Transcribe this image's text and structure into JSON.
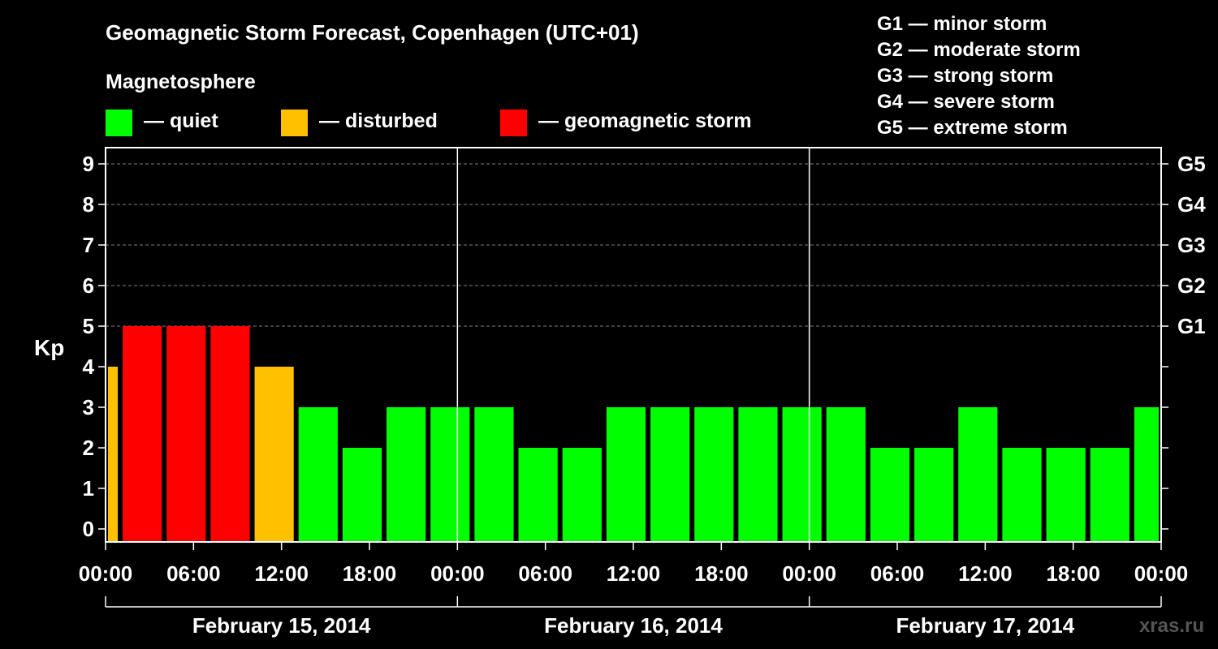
{
  "chart_data": {
    "type": "bar",
    "title": "Geomagnetic Storm Forecast, Copenhagen (UTC+01)",
    "legend_heading": "Magnetosphere",
    "legend": [
      {
        "label": "— quiet",
        "color": "#00ff00"
      },
      {
        "label": "— disturbed",
        "color": "#ffc000"
      },
      {
        "label": "— geomagnetic storm",
        "color": "#ff0000"
      }
    ],
    "storm_scale": [
      "G1 — minor storm",
      "G2 — moderate storm",
      "G3 — strong storm",
      "G4 — severe storm",
      "G5 — extreme storm"
    ],
    "ylabel": "Kp",
    "ylim": [
      0,
      9
    ],
    "yticks": [
      "0",
      "1",
      "2",
      "3",
      "4",
      "5",
      "6",
      "7",
      "8",
      "9"
    ],
    "gridlines": [
      5,
      6,
      7,
      8,
      9
    ],
    "right_axis_labels": [
      {
        "kp": 5,
        "label": "G1"
      },
      {
        "kp": 6,
        "label": "G2"
      },
      {
        "kp": 7,
        "label": "G3"
      },
      {
        "kp": 8,
        "label": "G4"
      },
      {
        "kp": 9,
        "label": "G5"
      }
    ],
    "x_hours_range": [
      0,
      72
    ],
    "xticks": [
      {
        "hour": 0,
        "label": "00:00"
      },
      {
        "hour": 6,
        "label": "06:00"
      },
      {
        "hour": 12,
        "label": "12:00"
      },
      {
        "hour": 18,
        "label": "18:00"
      },
      {
        "hour": 24,
        "label": "00:00"
      },
      {
        "hour": 30,
        "label": "06:00"
      },
      {
        "hour": 36,
        "label": "12:00"
      },
      {
        "hour": 42,
        "label": "18:00"
      },
      {
        "hour": 48,
        "label": "00:00"
      },
      {
        "hour": 54,
        "label": "06:00"
      },
      {
        "hour": 60,
        "label": "12:00"
      },
      {
        "hour": 66,
        "label": "18:00"
      },
      {
        "hour": 72,
        "label": "00:00"
      }
    ],
    "day_separators": [
      24,
      48
    ],
    "dates": [
      {
        "label": "February 15, 2014",
        "start": 0,
        "end": 24
      },
      {
        "label": "February 16, 2014",
        "start": 24,
        "end": 48
      },
      {
        "label": "February 17, 2014",
        "start": 48,
        "end": 72
      }
    ],
    "bars": [
      {
        "start": 0,
        "end": 1,
        "kp": 4,
        "level": "disturbed"
      },
      {
        "start": 1,
        "end": 4,
        "kp": 5,
        "level": "storm"
      },
      {
        "start": 4,
        "end": 7,
        "kp": 5,
        "level": "storm"
      },
      {
        "start": 7,
        "end": 10,
        "kp": 5,
        "level": "storm"
      },
      {
        "start": 10,
        "end": 13,
        "kp": 4,
        "level": "disturbed"
      },
      {
        "start": 13,
        "end": 16,
        "kp": 3,
        "level": "quiet"
      },
      {
        "start": 16,
        "end": 19,
        "kp": 2,
        "level": "quiet"
      },
      {
        "start": 19,
        "end": 22,
        "kp": 3,
        "level": "quiet"
      },
      {
        "start": 22,
        "end": 25,
        "kp": 3,
        "level": "quiet"
      },
      {
        "start": 25,
        "end": 28,
        "kp": 3,
        "level": "quiet"
      },
      {
        "start": 28,
        "end": 31,
        "kp": 2,
        "level": "quiet"
      },
      {
        "start": 31,
        "end": 34,
        "kp": 2,
        "level": "quiet"
      },
      {
        "start": 34,
        "end": 37,
        "kp": 3,
        "level": "quiet"
      },
      {
        "start": 37,
        "end": 40,
        "kp": 3,
        "level": "quiet"
      },
      {
        "start": 40,
        "end": 43,
        "kp": 3,
        "level": "quiet"
      },
      {
        "start": 43,
        "end": 46,
        "kp": 3,
        "level": "quiet"
      },
      {
        "start": 46,
        "end": 49,
        "kp": 3,
        "level": "quiet"
      },
      {
        "start": 49,
        "end": 52,
        "kp": 3,
        "level": "quiet"
      },
      {
        "start": 52,
        "end": 55,
        "kp": 2,
        "level": "quiet"
      },
      {
        "start": 55,
        "end": 58,
        "kp": 2,
        "level": "quiet"
      },
      {
        "start": 58,
        "end": 61,
        "kp": 3,
        "level": "quiet"
      },
      {
        "start": 61,
        "end": 64,
        "kp": 2,
        "level": "quiet"
      },
      {
        "start": 64,
        "end": 67,
        "kp": 2,
        "level": "quiet"
      },
      {
        "start": 67,
        "end": 70,
        "kp": 2,
        "level": "quiet"
      },
      {
        "start": 70,
        "end": 72,
        "kp": 3,
        "level": "quiet"
      }
    ],
    "colors": {
      "quiet": "#00ff00",
      "disturbed": "#ffc000",
      "storm": "#ff0000",
      "background": "#000000",
      "axis": "#ffffff",
      "grid": "#7f7f7f"
    },
    "watermark": "xras.ru"
  }
}
